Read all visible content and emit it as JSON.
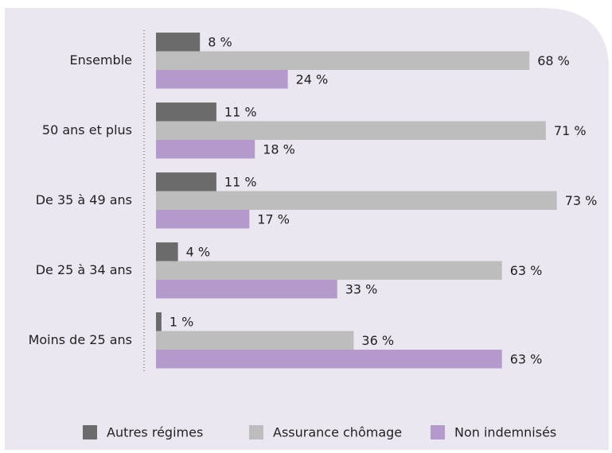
{
  "chart_data": {
    "type": "bar",
    "orientation": "horizontal",
    "categories": [
      "Ensemble",
      "50 ans et plus",
      "De 35 à 49 ans",
      "De 25 à 34 ans",
      "Moins de 25 ans"
    ],
    "series": [
      {
        "name": "Autres régimes",
        "color": "#6b6b6b",
        "values": [
          8,
          11,
          11,
          4,
          1
        ],
        "value_labels": [
          "8 %",
          "11 %",
          "11 %",
          "4 %",
          "1 %"
        ]
      },
      {
        "name": "Assurance chômage",
        "color": "#bdbdbd",
        "values": [
          68,
          71,
          73,
          63,
          36
        ],
        "value_labels": [
          "68 %",
          "71 %",
          "73 %",
          "63 %",
          "36 %"
        ]
      },
      {
        "name": "Non indemnisés",
        "color": "#b39acb",
        "values": [
          24,
          18,
          17,
          33,
          63
        ],
        "value_labels": [
          "24 %",
          "18 %",
          "17 %",
          "33 %",
          "63 %"
        ]
      }
    ],
    "xlim": [
      0,
      80
    ],
    "legend": "bottom"
  }
}
